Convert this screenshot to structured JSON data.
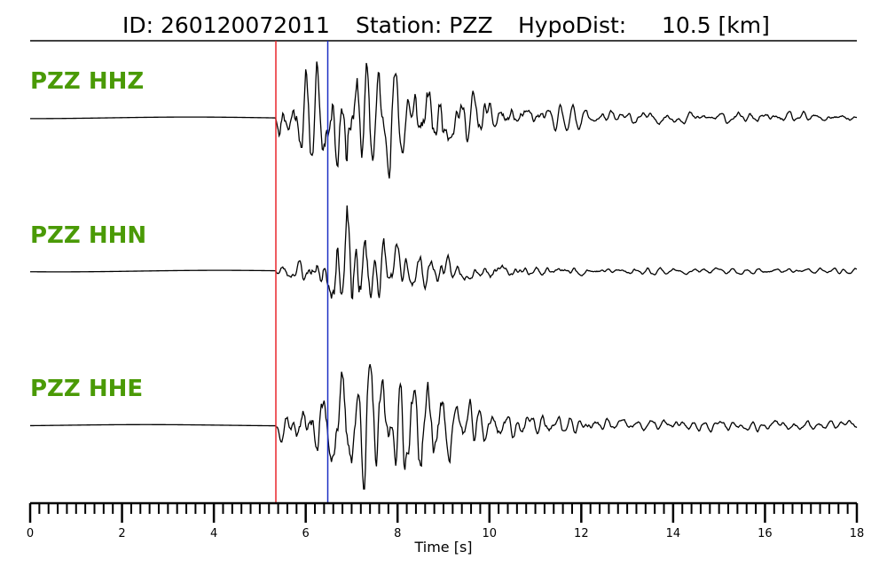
{
  "chart_data": {
    "type": "line",
    "title": {
      "id": "ID: 260120072011",
      "station": "Station: PZZ",
      "hypodist": "HypoDist:     10.5 [km]"
    },
    "xlabel": "Time [s]",
    "ylabel": "",
    "xlim": [
      0,
      18
    ],
    "x_ticks": [
      0,
      2,
      4,
      6,
      8,
      10,
      12,
      14,
      16,
      18
    ],
    "x_minor_step": 0.2,
    "grid": false,
    "legend": "none",
    "colors": {
      "trace": "#000000",
      "label": "#4a9a06",
      "p_pick": "#e8262b",
      "s_pick": "#1c2fc4"
    },
    "picks": [
      {
        "phase": "P",
        "time": 5.35,
        "color": "#e8262b"
      },
      {
        "phase": "S",
        "time": 6.48,
        "color": "#1c2fc4"
      }
    ],
    "series": [
      {
        "name": "PZZ HHZ",
        "seed": 11,
        "pre_amp": 0.01,
        "envelope": [
          [
            5.35,
            0.35
          ],
          [
            5.8,
            0.55
          ],
          [
            6.4,
            0.75
          ],
          [
            6.9,
            1.0
          ],
          [
            7.5,
            0.75
          ],
          [
            8.5,
            0.62
          ],
          [
            9.5,
            0.38
          ],
          [
            10.5,
            0.2
          ],
          [
            12,
            0.12
          ],
          [
            14,
            0.09
          ],
          [
            18,
            0.07
          ]
        ]
      },
      {
        "name": "PZZ HHN",
        "seed": 23,
        "pre_amp": 0.01,
        "envelope": [
          [
            5.35,
            0.12
          ],
          [
            6.0,
            0.2
          ],
          [
            6.4,
            0.35
          ],
          [
            6.9,
            1.0
          ],
          [
            7.4,
            0.6
          ],
          [
            8.3,
            0.3
          ],
          [
            9.5,
            0.15
          ],
          [
            11,
            0.08
          ],
          [
            14,
            0.05
          ],
          [
            18,
            0.04
          ]
        ]
      },
      {
        "name": "PZZ HHE",
        "seed": 37,
        "pre_amp": 0.01,
        "envelope": [
          [
            5.35,
            0.25
          ],
          [
            6.0,
            0.45
          ],
          [
            6.6,
            0.9
          ],
          [
            7.0,
            1.0
          ],
          [
            8.0,
            0.8
          ],
          [
            8.6,
            0.95
          ],
          [
            9.5,
            0.4
          ],
          [
            10.5,
            0.25
          ],
          [
            12,
            0.14
          ],
          [
            14,
            0.1
          ],
          [
            18,
            0.08
          ]
        ]
      }
    ]
  }
}
